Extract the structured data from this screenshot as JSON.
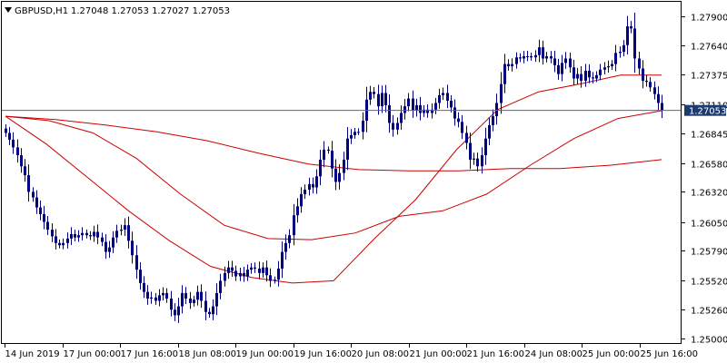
{
  "header": {
    "symbol_timeframe": "GBPUSD,H1",
    "ohlc": "1.27048 1.27053 1.27027 1.27053"
  },
  "price_tag": "1.27053",
  "colors": {
    "background": "#ffffff",
    "frame": "#000000",
    "candle": "#000080",
    "moving_average": "#cc0000",
    "bid_line": "#4a6a9a",
    "price_tag_bg": "#1e3a6e"
  },
  "chart_data": {
    "type": "candlestick",
    "instrument": "GBPUSD",
    "timeframe": "H1",
    "ylim": [
      1.2496,
      1.2803
    ],
    "y_ticks": [
      "1.27900",
      "1.27640",
      "1.27375",
      "1.27110",
      "1.26845",
      "1.26580",
      "1.26320",
      "1.26050",
      "1.25790",
      "1.25520",
      "1.25260",
      "1.25000"
    ],
    "x_ticks": [
      "14 Jun 2019",
      "17 Jun 00:00",
      "17 Jun 16:00",
      "18 Jun 08:00",
      "19 Jun 00:00",
      "19 Jun 16:00",
      "20 Jun 08:00",
      "21 Jun 00:00",
      "21 Jun 16:00",
      "24 Jun 08:00",
      "25 Jun 00:00",
      "25 Jun 16:00"
    ],
    "last_price": 1.27053,
    "series": [
      {
        "name": "GBPUSD",
        "close": [
          1.2685,
          1.2679,
          1.2672,
          1.2665,
          1.2655,
          1.2647,
          1.2632,
          1.2627,
          1.2618,
          1.2612,
          1.2605,
          1.2598,
          1.2592,
          1.2586,
          1.2584,
          1.2586,
          1.259,
          1.2594,
          1.2591,
          1.2593,
          1.2595,
          1.2593,
          1.2592,
          1.2596,
          1.2591,
          1.2587,
          1.2578,
          1.2582,
          1.2591,
          1.2597,
          1.2598,
          1.2602,
          1.2588,
          1.2575,
          1.2562,
          1.255,
          1.2542,
          1.2536,
          1.2537,
          1.2534,
          1.2539,
          1.2541,
          1.2536,
          1.2526,
          1.2521,
          1.2529,
          1.2541,
          1.2536,
          1.2532,
          1.2535,
          1.2542,
          1.2534,
          1.2524,
          1.2522,
          1.2529,
          1.2541,
          1.2552,
          1.2559,
          1.2564,
          1.2561,
          1.2556,
          1.2559,
          1.2556,
          1.2562,
          1.2564,
          1.2563,
          1.2559,
          1.2564,
          1.2557,
          1.2552,
          1.2553,
          1.2563,
          1.2578,
          1.2586,
          1.2593,
          1.2611,
          1.2619,
          1.263,
          1.2634,
          1.2639,
          1.2636,
          1.2646,
          1.2661,
          1.267,
          1.2669,
          1.2653,
          1.2641,
          1.2649,
          1.2661,
          1.268,
          1.2683,
          1.2686,
          1.2686,
          1.2696,
          1.2715,
          1.2722,
          1.272,
          1.2709,
          1.2721,
          1.271,
          1.2694,
          1.2688,
          1.2694,
          1.2703,
          1.2709,
          1.2716,
          1.2705,
          1.271,
          1.2703,
          1.2706,
          1.2703,
          1.2706,
          1.2712,
          1.2719,
          1.2721,
          1.2714,
          1.2708,
          1.2698,
          1.2695,
          1.2685,
          1.2676,
          1.2661,
          1.2662,
          1.2655,
          1.2665,
          1.268,
          1.2692,
          1.27,
          1.2712,
          1.2729,
          1.2747,
          1.2745,
          1.2747,
          1.2753,
          1.2752,
          1.2754,
          1.2754,
          1.2753,
          1.2755,
          1.2762,
          1.2752,
          1.2754,
          1.2752,
          1.2746,
          1.2738,
          1.2748,
          1.2752,
          1.2744,
          1.2734,
          1.2738,
          1.2732,
          1.2741,
          1.2735,
          1.2734,
          1.2737,
          1.2742,
          1.2744,
          1.2745,
          1.2747,
          1.2757,
          1.2758,
          1.2764,
          1.2781,
          1.2779,
          1.2752,
          1.2743,
          1.2732,
          1.2731,
          1.2726,
          1.272,
          1.2712,
          1.2705
        ]
      },
      {
        "name": "MA fast",
        "values": [
          1.27,
          1.2675,
          1.2645,
          1.2615,
          1.2588,
          1.2565,
          1.2555,
          1.255,
          1.2552,
          1.259,
          1.2625,
          1.267,
          1.2706,
          1.2722,
          1.2729,
          1.2737,
          1.2737
        ]
      },
      {
        "name": "MA medium",
        "values": [
          1.27,
          1.2696,
          1.2685,
          1.2662,
          1.263,
          1.2602,
          1.259,
          1.2589,
          1.2595,
          1.261,
          1.2615,
          1.263,
          1.2656,
          1.268,
          1.2698,
          1.2705
        ]
      },
      {
        "name": "MA slow",
        "values": [
          1.27,
          1.2697,
          1.2692,
          1.2686,
          1.2678,
          1.2667,
          1.2657,
          1.2652,
          1.2651,
          1.2651,
          1.2653,
          1.2653,
          1.2656,
          1.2661
        ]
      }
    ]
  }
}
